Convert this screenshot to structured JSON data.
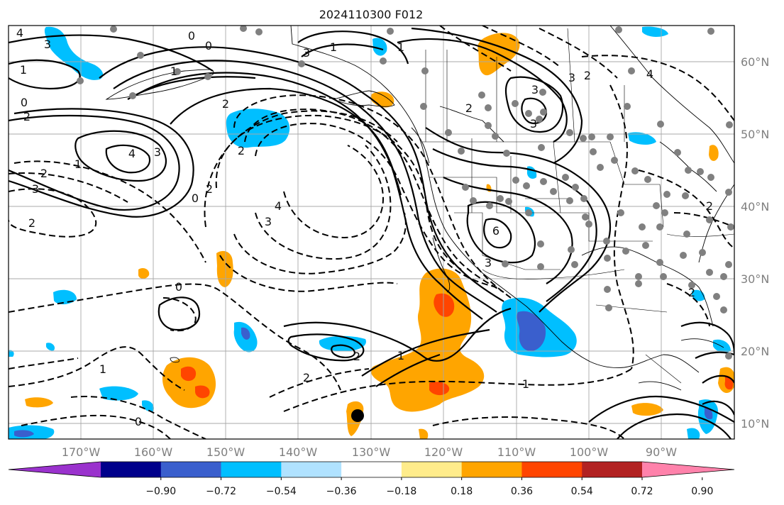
{
  "title": "2024110300 F012",
  "lon_labels": [
    "170°W",
    "160°W",
    "150°W",
    "140°W",
    "130°W",
    "120°W",
    "110°W",
    "100°W",
    "90°W"
  ],
  "lat_labels": [
    "60°N",
    "50°N",
    "40°N",
    "30°N",
    "20°N",
    "10°N"
  ],
  "colorbar": {
    "colors": [
      "#9a32cd",
      "#00008b",
      "#3a5fcd",
      "#00bfff",
      "#b0e2ff",
      "#ffffff",
      "#ffec8b",
      "#ffa500",
      "#ff4500",
      "#b22222",
      "#ff82ab"
    ],
    "tick_labels": [
      "−0.90",
      "−0.72",
      "−0.54",
      "−0.36",
      "−0.18",
      "0.18",
      "0.36",
      "0.54",
      "0.72",
      "0.90"
    ]
  },
  "contour_labels": [
    "4",
    "3",
    "0",
    "0",
    "1",
    "0",
    "2",
    "4",
    "3",
    "3",
    "2",
    "2",
    "3",
    "1",
    "2",
    "2",
    "2",
    "1",
    "3",
    "2",
    "4",
    "3",
    "1",
    "0",
    "6",
    "3",
    "2",
    "1",
    "2",
    "1",
    "0",
    "1",
    "0",
    "2",
    "3",
    "4",
    "2",
    "3",
    "1",
    "2"
  ],
  "colors": {
    "orange": "#ffa500",
    "red": "#ff4500",
    "blue": "#00bfff",
    "darkblue": "#3a5fcd",
    "grid": "#a9a9a9",
    "obs_dot": "#808080"
  }
}
